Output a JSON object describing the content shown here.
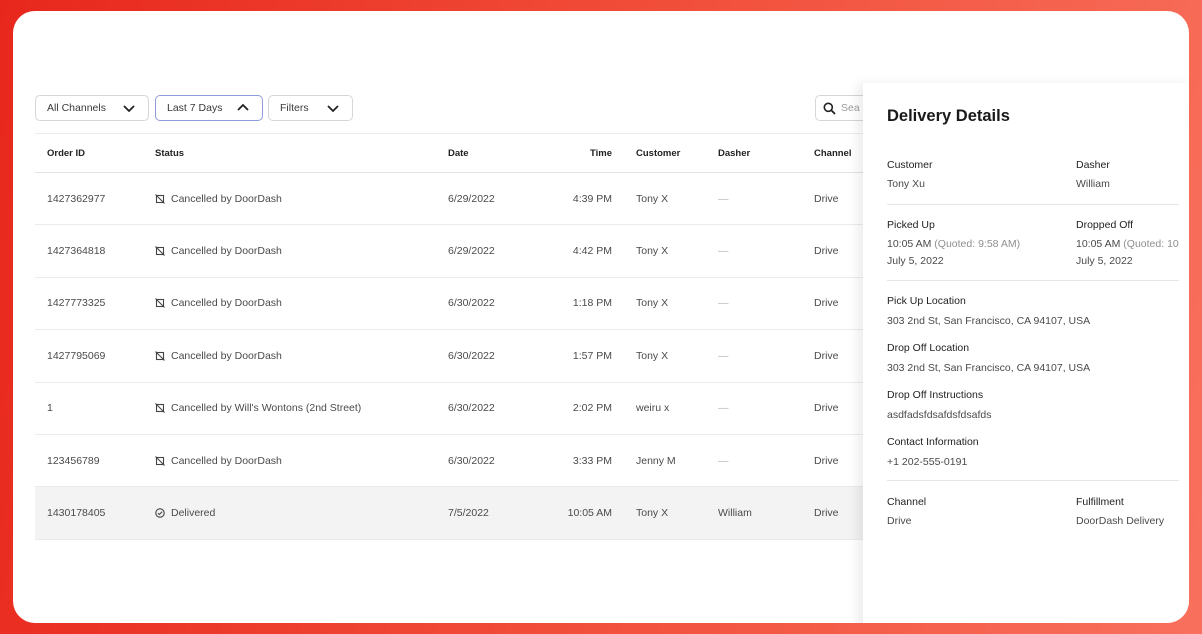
{
  "filters": {
    "channels_label": "All Channels",
    "date_label": "Last 7 Days",
    "filters_label": "Filters"
  },
  "search": {
    "placeholder": "Sea"
  },
  "table": {
    "headers": {
      "order_id": "Order ID",
      "status": "Status",
      "date": "Date",
      "time": "Time",
      "customer": "Customer",
      "dasher": "Dasher",
      "channel": "Channel"
    },
    "rows": [
      {
        "order_id": "1427362977",
        "status": "Cancelled by DoorDash",
        "status_icon": "cancelled-icon",
        "date": "6/29/2022",
        "time": "4:39 PM",
        "customer": "Tony X",
        "dasher": "—",
        "channel": "Drive"
      },
      {
        "order_id": "1427364818",
        "status": "Cancelled by DoorDash",
        "status_icon": "cancelled-icon",
        "date": "6/29/2022",
        "time": "4:42 PM",
        "customer": "Tony X",
        "dasher": "—",
        "channel": "Drive"
      },
      {
        "order_id": "1427773325",
        "status": "Cancelled by DoorDash",
        "status_icon": "cancelled-icon",
        "date": "6/30/2022",
        "time": "1:18 PM",
        "customer": "Tony X",
        "dasher": "—",
        "channel": "Drive"
      },
      {
        "order_id": "1427795069",
        "status": "Cancelled by DoorDash",
        "status_icon": "cancelled-icon",
        "date": "6/30/2022",
        "time": "1:57 PM",
        "customer": "Tony X",
        "dasher": "—",
        "channel": "Drive"
      },
      {
        "order_id": "1",
        "status": "Cancelled by Will's Wontons (2nd Street)",
        "status_icon": "cancelled-icon",
        "date": "6/30/2022",
        "time": "2:02 PM",
        "customer": "weiru x",
        "dasher": "—",
        "channel": "Drive"
      },
      {
        "order_id": "123456789",
        "status": "Cancelled by DoorDash",
        "status_icon": "cancelled-icon",
        "date": "6/30/2022",
        "time": "3:33 PM",
        "customer": "Jenny M",
        "dasher": "—",
        "channel": "Drive"
      },
      {
        "order_id": "1430178405",
        "status": "Delivered",
        "status_icon": "delivered-check-icon",
        "date": "7/5/2022",
        "time": "10:05 AM",
        "customer": "Tony X",
        "dasher": "William",
        "channel": "Drive"
      }
    ]
  },
  "details": {
    "title": "Delivery Details",
    "customer_label": "Customer",
    "customer_value": "Tony Xu",
    "dasher_label": "Dasher",
    "dasher_value": "William",
    "picked_up_label": "Picked Up",
    "picked_up_time": "10:05 AM",
    "picked_up_quoted": "(Quoted: 9:58 AM)",
    "picked_up_date": "July 5, 2022",
    "dropped_off_label": "Dropped Off",
    "dropped_off_time": "10:05 AM",
    "dropped_off_quoted": "(Quoted: 10",
    "dropped_off_date": "July 5, 2022",
    "pickup_location_label": "Pick Up Location",
    "pickup_location_value": "303 2nd St, San Francisco, CA 94107, USA",
    "dropoff_location_label": "Drop Off Location",
    "dropoff_location_value": "303 2nd St, San Francisco, CA 94107, USA",
    "dropoff_instructions_label": "Drop Off Instructions",
    "dropoff_instructions_value": "asdfadsfdsafdsfdsafds",
    "contact_label": "Contact Information",
    "contact_value": "+1 202-555-0191",
    "channel_label": "Channel",
    "channel_value": "Drive",
    "fulfillment_label": "Fulfillment",
    "fulfillment_value": "DoorDash Delivery"
  },
  "colors": {
    "background_start": "#e8271c",
    "background_end": "#f8705c",
    "active_filter_border": "#8f9bd8",
    "highlight_row": "#f3f3f3"
  }
}
